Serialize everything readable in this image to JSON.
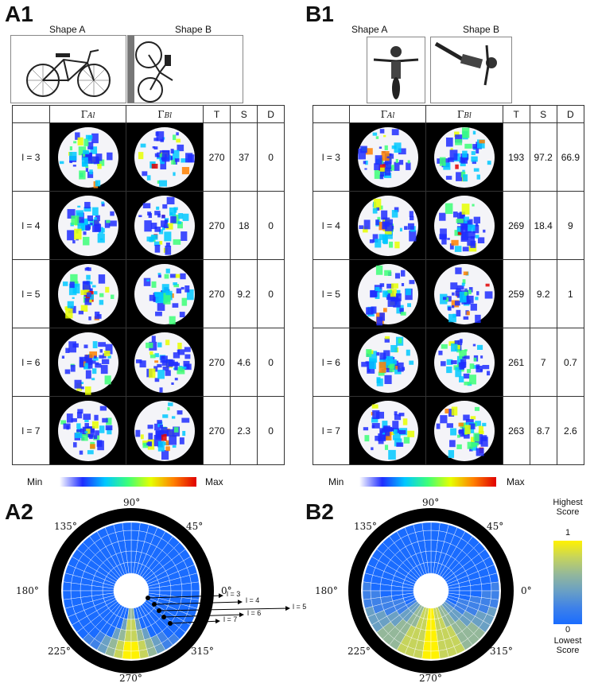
{
  "panels": {
    "a1": {
      "label": "A1",
      "shape_a": "Shape A",
      "shape_b": "Shape B",
      "headers": [
        "",
        "Γ",
        "Al",
        "Γ",
        "Bl",
        "T",
        "S",
        "D"
      ],
      "rows": [
        {
          "level": "l = 3",
          "T": "270",
          "S": "37",
          "D": "0"
        },
        {
          "level": "l = 4",
          "T": "270",
          "S": "18",
          "D": "0"
        },
        {
          "level": "l = 5",
          "T": "270",
          "S": "9.2",
          "D": "0"
        },
        {
          "level": "l = 6",
          "T": "270",
          "S": "4.6",
          "D": "0"
        },
        {
          "level": "l = 7",
          "T": "270",
          "S": "2.3",
          "D": "0"
        }
      ]
    },
    "b1": {
      "label": "B1",
      "shape_a": "Shape A",
      "shape_b": "Shape B",
      "headers": [
        "",
        "Γ",
        "Al",
        "Γ",
        "Bl",
        "T",
        "S",
        "D"
      ],
      "rows": [
        {
          "level": "l = 3",
          "T": "193",
          "S": "97.2",
          "D": "66.9"
        },
        {
          "level": "l = 4",
          "T": "269",
          "S": "18.4",
          "D": "9"
        },
        {
          "level": "l = 5",
          "T": "259",
          "S": "9.2",
          "D": "1"
        },
        {
          "level": "l = 6",
          "T": "261",
          "S": "7",
          "D": "0.7"
        },
        {
          "level": "l = 7",
          "T": "263",
          "S": "8.7",
          "D": "2.6"
        }
      ]
    },
    "a2": {
      "label": "A2",
      "angles": [
        "90°",
        "45°",
        "0°",
        "315°",
        "270°",
        "225°",
        "180°",
        "135°"
      ],
      "levels": [
        "l = 3",
        "l = 4",
        "l = 5",
        "l = 6",
        "l = 7"
      ]
    },
    "b2": {
      "label": "B2",
      "angles": [
        "90°",
        "45°",
        "0°",
        "315°",
        "270°",
        "225°",
        "180°",
        "135°"
      ]
    }
  },
  "colorbar": {
    "min": "Min",
    "max": "Max"
  },
  "score_scale": {
    "top_label": "Highest Score",
    "top_value": "1",
    "bottom_value": "0",
    "bottom_label": "Lowest Score"
  },
  "colors": {
    "jet": [
      "#ffffff",
      "#1f2dff",
      "#00c8ff",
      "#3cff78",
      "#e6ff00",
      "#ff8000",
      "#e00000"
    ],
    "score": [
      "#1a6cff",
      "#3f82e8",
      "#6aa0c4",
      "#94b89a",
      "#c6d45c",
      "#fff200"
    ]
  }
}
